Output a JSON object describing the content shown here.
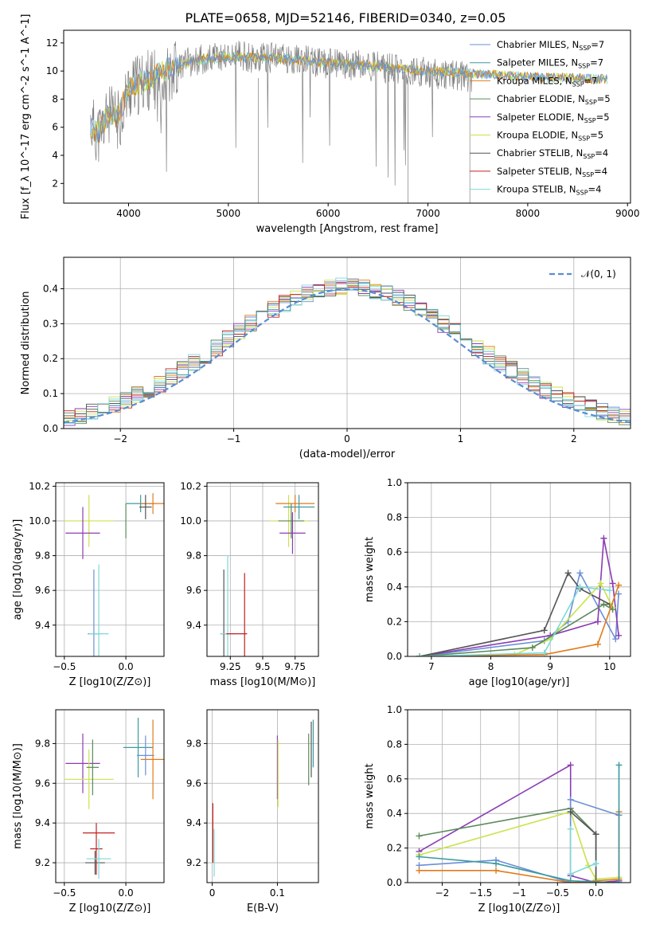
{
  "title": "PLATE=0658, MJD=52146, FIBERID=0340, z=0.05",
  "colors": [
    "#6b8fd6",
    "#3d9aa0",
    "#e07b1a",
    "#5a8a5a",
    "#8b3bb5",
    "#c9e34a",
    "#555555",
    "#c22020",
    "#7fd8d8"
  ],
  "chart_data": [
    {
      "type": "line",
      "id": "spectrum",
      "xlabel": "wavelength [Angstrom, rest frame]",
      "ylabel": "Flux [f_λ 10^-17 erg cm^-2 s^-1 A^-1]",
      "xlim": [
        3350,
        9030
      ],
      "ylim": [
        0.6,
        12.9
      ],
      "xticks": [
        4000,
        5000,
        6000,
        7000,
        8000,
        9000
      ],
      "yticks": [
        2,
        4,
        6,
        8,
        10,
        12
      ],
      "legend_position": "upper right",
      "legend": [
        {
          "label": "Chabrier MILES",
          "n": "7"
        },
        {
          "label": "Salpeter MILES",
          "n": "7"
        },
        {
          "label": "Kroupa MILES",
          "n": "7"
        },
        {
          "label": "Chabrier ELODIE",
          "n": "5"
        },
        {
          "label": "Salpeter ELODIE",
          "n": "5"
        },
        {
          "label": "Kroupa ELODIE",
          "n": "5"
        },
        {
          "label": "Chabrier STELIB",
          "n": "4"
        },
        {
          "label": "Salpeter STELIB",
          "n": "4"
        },
        {
          "label": "Kroupa STELIB",
          "n": "4"
        }
      ],
      "data_continuum": {
        "x": [
          3620,
          3700,
          3800,
          3900,
          4000,
          4100,
          4200,
          4300,
          4400,
          4500,
          4700,
          4900,
          5100,
          5300,
          5500,
          5700,
          5900,
          6100,
          6300,
          6500,
          6700,
          6900,
          7100,
          7300,
          7400
        ],
        "y": [
          6.2,
          5.5,
          6.8,
          6.5,
          8.6,
          9.0,
          9.4,
          9.2,
          10.0,
          10.4,
          10.8,
          11.0,
          11.1,
          10.9,
          11.0,
          10.8,
          10.6,
          10.5,
          10.4,
          10.3,
          10.1,
          10.0,
          9.8,
          9.7,
          9.6
        ]
      },
      "model_continuum": {
        "x": [
          3620,
          3700,
          3800,
          3900,
          4000,
          4200,
          4400,
          4600,
          4800,
          5000,
          5200,
          5500,
          6000,
          6500,
          7000,
          7500,
          8000,
          8500,
          8800
        ],
        "y": [
          6.0,
          5.6,
          7.0,
          6.8,
          8.8,
          9.4,
          10.2,
          10.6,
          10.9,
          11.0,
          11.0,
          10.9,
          10.6,
          10.3,
          10.0,
          9.8,
          9.6,
          9.5,
          9.4
        ]
      }
    },
    {
      "type": "histogram",
      "id": "residuals",
      "xlabel": "(data-model)/error",
      "ylabel": "Normed distribution",
      "xlim": [
        -2.5,
        2.5
      ],
      "ylim": [
        0,
        0.49
      ],
      "xticks": [
        -2,
        -1,
        0,
        1,
        2
      ],
      "yticks": [
        0.0,
        0.1,
        0.2,
        0.3,
        0.4
      ],
      "legend": "𝒩(0, 1)",
      "bin_width": 0.1
    },
    {
      "type": "errorbar",
      "id": "age_vs_Z",
      "xlabel": "Z [log10(Z/Z⊙)]",
      "ylabel": "age  [log10(age/yr)]",
      "xlim": [
        -0.57,
        0.31
      ],
      "ylim": [
        9.22,
        10.22
      ],
      "xticks": [
        -0.5,
        0.0
      ],
      "yticks": [
        9.4,
        9.6,
        9.8,
        10.0,
        10.2
      ],
      "points": [
        {
          "x": -0.26,
          "xerr": 0.05,
          "y": 9.35,
          "yerr": 0.37,
          "c": 0
        },
        {
          "x": -0.22,
          "xerr": 0.08,
          "y": 9.35,
          "yerr": 0.4,
          "c": 8
        },
        {
          "x": 0.0,
          "xerr": 0.0,
          "y": 10.0,
          "yerr": 0.1,
          "c": 3
        },
        {
          "x": -0.3,
          "xerr": 0.2,
          "y": 10.0,
          "yerr": 0.15,
          "c": 5
        },
        {
          "x": -0.35,
          "xerr": 0.14,
          "y": 9.93,
          "yerr": 0.15,
          "c": 4
        },
        {
          "x": 0.12,
          "xerr": 0.12,
          "y": 10.1,
          "yerr": 0.05,
          "c": 1
        },
        {
          "x": 0.22,
          "xerr": 0.1,
          "y": 10.1,
          "yerr": 0.06,
          "c": 2
        },
        {
          "x": 0.16,
          "xerr": 0.05,
          "y": 10.08,
          "yerr": 0.07,
          "c": 6
        }
      ]
    },
    {
      "type": "errorbar",
      "id": "age_vs_mass",
      "xlabel": "mass [log10(M/M⊙)]",
      "xlim": [
        9.07,
        9.93
      ],
      "ylim": [
        9.22,
        10.22
      ],
      "xticks": [
        9.25,
        9.5,
        9.75
      ],
      "yticks": [
        9.4,
        9.6,
        9.8,
        10.0,
        10.2
      ]
    },
    {
      "type": "line",
      "id": "massweight_vs_age",
      "xlabel": "age  [log10(age/yr)]",
      "ylabel": "mass weight",
      "xlim": [
        6.6,
        10.35
      ],
      "ylim": [
        0,
        1
      ],
      "xticks": [
        7,
        8,
        9,
        10
      ],
      "yticks": [
        0.0,
        0.2,
        0.4,
        0.6,
        0.8,
        1.0
      ],
      "series": [
        {
          "c": 0,
          "x": [
            6.8,
            8.9,
            9.3,
            9.5,
            10.1,
            10.15
          ],
          "y": [
            0,
            0.09,
            0.2,
            0.48,
            0.1,
            0.36
          ]
        },
        {
          "c": 4,
          "x": [
            6.8,
            9.0,
            9.8,
            9.9,
            10.05,
            10.15
          ],
          "y": [
            0,
            0.12,
            0.2,
            0.68,
            0.42,
            0.12
          ]
        },
        {
          "c": 6,
          "x": [
            6.8,
            8.9,
            9.3,
            9.5,
            10.0
          ],
          "y": [
            0,
            0.15,
            0.48,
            0.39,
            0.3
          ]
        },
        {
          "c": 5,
          "x": [
            6.8,
            8.4,
            9.0,
            9.85,
            10.05
          ],
          "y": [
            0,
            0.01,
            0.1,
            0.42,
            0.28
          ]
        },
        {
          "c": 3,
          "x": [
            6.8,
            8.7,
            9.9,
            10.05
          ],
          "y": [
            0,
            0.05,
            0.3,
            0.27
          ]
        },
        {
          "c": 2,
          "x": [
            6.8,
            8.9,
            9.8,
            10.15
          ],
          "y": [
            0,
            0.01,
            0.07,
            0.41
          ]
        },
        {
          "c": 8,
          "x": [
            6.8,
            8.9,
            9.5,
            10.0
          ],
          "y": [
            0,
            0.02,
            0.4,
            0.38
          ]
        }
      ]
    },
    {
      "type": "errorbar",
      "id": "mass_vs_Z",
      "xlabel": "Z [log10(Z/Z⊙)]",
      "ylabel": "mass [log10(M/M⊙)]",
      "xlim": [
        -0.57,
        0.31
      ],
      "ylim": [
        9.1,
        9.97
      ],
      "xticks": [
        -0.5,
        0.0
      ],
      "yticks": [
        9.2,
        9.4,
        9.6,
        9.8
      ]
    },
    {
      "type": "errorbar",
      "id": "mass_vs_EBV",
      "xlabel": "E(B-V)",
      "xlim": [
        -0.008,
        0.163
      ],
      "ylim": [
        9.1,
        9.97
      ],
      "xticks": [
        0.0,
        0.1
      ],
      "yticks": [
        9.2,
        9.4,
        9.6,
        9.8
      ]
    },
    {
      "type": "line",
      "id": "massweight_vs_Z",
      "xlabel": "Z [log10(Z/Z⊙)]",
      "ylabel": "mass weight",
      "xlim": [
        -2.45,
        0.45
      ],
      "ylim": [
        0,
        1
      ],
      "xticks": [
        -2.0,
        -1.5,
        -1.0,
        -0.5,
        0.0
      ],
      "yticks": [
        0.0,
        0.2,
        0.4,
        0.6,
        0.8,
        1.0
      ],
      "series": [
        {
          "c": 4,
          "x": [
            -2.3,
            -0.33,
            -0.33,
            0.0,
            0.3
          ],
          "y": [
            0.18,
            0.68,
            0.04,
            0.0,
            0.01
          ]
        },
        {
          "c": 3,
          "x": [
            -2.3,
            -0.33,
            0.0,
            0.0
          ],
          "y": [
            0.27,
            0.43,
            0.28,
            0.01
          ]
        },
        {
          "c": 5,
          "x": [
            -2.3,
            -0.33,
            -0.1,
            0.0,
            0.3
          ],
          "y": [
            0.16,
            0.41,
            0.1,
            0.02,
            0.03
          ]
        },
        {
          "c": 0,
          "x": [
            -2.3,
            -1.3,
            -0.33,
            -0.33,
            0.3
          ],
          "y": [
            0.1,
            0.13,
            0.0,
            0.48,
            0.39
          ]
        },
        {
          "c": 6,
          "x": [
            -0.33,
            0.0,
            0.0
          ],
          "y": [
            0.41,
            0.28,
            0.0
          ]
        },
        {
          "c": 2,
          "x": [
            -2.3,
            -1.3,
            -0.33,
            0.3,
            0.3
          ],
          "y": [
            0.07,
            0.07,
            0.0,
            0.02,
            0.41
          ]
        },
        {
          "c": 1,
          "x": [
            -2.3,
            -1.3,
            -0.33,
            0.3,
            0.3
          ],
          "y": [
            0.15,
            0.11,
            0.01,
            0.0,
            0.68
          ]
        },
        {
          "c": 8,
          "x": [
            -0.33,
            -0.33,
            0.0
          ],
          "y": [
            0.31,
            0.05,
            0.11
          ]
        }
      ]
    }
  ]
}
